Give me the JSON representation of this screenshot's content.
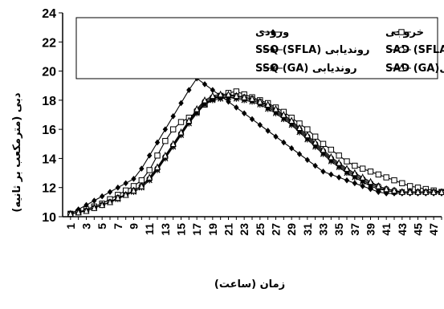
{
  "chart_data": {
    "type": "line",
    "xlabel": "زمان (ساعت)",
    "ylabel": "دبی (مترمکعب بر ثانیه)",
    "ylim": [
      10,
      24
    ],
    "yticks": [
      10,
      12,
      14,
      16,
      18,
      20,
      22,
      24
    ],
    "xlim": [
      0,
      48
    ],
    "xticks": [
      1,
      3,
      5,
      7,
      9,
      11,
      13,
      15,
      17,
      19,
      21,
      23,
      25,
      27,
      29,
      31,
      33,
      35,
      37,
      39,
      41,
      43,
      45,
      47
    ],
    "x": [
      1,
      2,
      3,
      4,
      5,
      6,
      7,
      8,
      9,
      10,
      11,
      12,
      13,
      14,
      15,
      16,
      17,
      18,
      19,
      20,
      21,
      22,
      23,
      24,
      25,
      26,
      27,
      28,
      29,
      30,
      31,
      32,
      33,
      34,
      35,
      36,
      37,
      38,
      39,
      40,
      41,
      42,
      43,
      44,
      45,
      46,
      47,
      48
    ],
    "series": [
      {
        "name": "ورودی",
        "marker": "diamond",
        "values": [
          10.2,
          10.5,
          10.8,
          11.1,
          11.4,
          11.7,
          12.0,
          12.3,
          12.6,
          13.3,
          14.2,
          15.1,
          16.0,
          16.9,
          17.8,
          18.7,
          19.5,
          19.1,
          18.7,
          18.3,
          17.9,
          17.5,
          17.1,
          16.7,
          16.3,
          15.9,
          15.5,
          15.1,
          14.7,
          14.3,
          13.9,
          13.5,
          13.1,
          12.9,
          12.7,
          12.5,
          12.3,
          12.1,
          11.9,
          11.7,
          11.6,
          11.6,
          11.6,
          11.6,
          11.6,
          11.6,
          11.6,
          11.6
        ]
      },
      {
        "name": "خروجی",
        "marker": "square",
        "values": [
          10.2,
          10.3,
          10.5,
          10.7,
          10.9,
          11.2,
          11.5,
          11.8,
          12.1,
          12.5,
          13.2,
          14.2,
          15.2,
          16.0,
          16.5,
          16.8,
          17.2,
          17.7,
          18.1,
          18.3,
          18.5,
          18.6,
          18.4,
          18.2,
          18.0,
          17.8,
          17.5,
          17.2,
          16.8,
          16.4,
          16.0,
          15.5,
          15.0,
          14.6,
          14.2,
          13.8,
          13.5,
          13.3,
          13.1,
          12.9,
          12.7,
          12.5,
          12.3,
          12.1,
          12.0,
          11.9,
          11.8,
          11.7
        ]
      },
      {
        "name": "روندیابی (SFLA) SSQ",
        "marker": "triangle-filled",
        "values": [
          10.2,
          10.3,
          10.4,
          10.6,
          10.8,
          11.0,
          11.3,
          11.5,
          11.8,
          12.1,
          12.6,
          13.3,
          14.1,
          14.9,
          15.7,
          16.5,
          17.2,
          17.8,
          18.1,
          18.2,
          18.2,
          18.2,
          18.1,
          18.0,
          17.8,
          17.5,
          17.2,
          16.8,
          16.4,
          15.9,
          15.4,
          14.9,
          14.4,
          13.9,
          13.5,
          13.1,
          12.8,
          12.5,
          12.2,
          12.0,
          11.8,
          11.7,
          11.7,
          11.7,
          11.7,
          11.7,
          11.7,
          11.7
        ]
      },
      {
        "name": "روندیابی (SFLA) SAD",
        "marker": "circle",
        "values": [
          10.2,
          10.3,
          10.4,
          10.6,
          10.8,
          11.0,
          11.3,
          11.5,
          11.8,
          12.1,
          12.6,
          13.3,
          14.1,
          14.9,
          15.7,
          16.5,
          17.3,
          17.9,
          18.2,
          18.3,
          18.3,
          18.3,
          18.2,
          18.1,
          17.9,
          17.6,
          17.3,
          16.9,
          16.5,
          16.0,
          15.5,
          15.0,
          14.5,
          14.0,
          13.6,
          13.2,
          12.9,
          12.6,
          12.3,
          12.1,
          11.9,
          11.8,
          11.7,
          11.7,
          11.7,
          11.7,
          11.7,
          11.7
        ]
      },
      {
        "name": "روندیابی (GA) SSQ",
        "marker": "star",
        "values": [
          10.2,
          10.3,
          10.4,
          10.6,
          10.8,
          11.0,
          11.2,
          11.5,
          11.7,
          12.0,
          12.5,
          13.2,
          14.0,
          14.8,
          15.6,
          16.4,
          17.1,
          17.7,
          18.0,
          18.1,
          18.2,
          18.1,
          18.0,
          17.9,
          17.7,
          17.4,
          17.1,
          16.7,
          16.3,
          15.8,
          15.3,
          14.8,
          14.3,
          13.8,
          13.4,
          13.0,
          12.7,
          12.4,
          12.1,
          11.9,
          11.8,
          11.7,
          11.7,
          11.7,
          11.7,
          11.7,
          11.7,
          11.7
        ]
      },
      {
        "name": "روندیابی (GA) SAD",
        "marker": "triangle-open",
        "values": [
          10.2,
          10.3,
          10.4,
          10.6,
          10.8,
          11.0,
          11.3,
          11.5,
          11.8,
          12.1,
          12.7,
          13.4,
          14.2,
          15.0,
          15.8,
          16.6,
          17.4,
          18.0,
          18.3,
          18.4,
          18.4,
          18.3,
          18.2,
          18.1,
          17.9,
          17.7,
          17.4,
          17.0,
          16.6,
          16.1,
          15.6,
          15.1,
          14.6,
          14.1,
          13.7,
          13.3,
          13.0,
          12.7,
          12.4,
          12.1,
          11.9,
          11.8,
          11.7,
          11.7,
          11.7,
          11.7,
          11.7,
          11.7
        ]
      }
    ],
    "legend": {
      "placement": "top",
      "entries": [
        {
          "label": "ورودی",
          "series_index": 0
        },
        {
          "label": "خروجی",
          "series_index": 1
        },
        {
          "label": "روندیابی SSQ (SFLA)",
          "series_index": 2
        },
        {
          "label": "روندیابی SAD (SFLA)",
          "series_index": 3
        },
        {
          "label": "روندیابی SSQ (GA)",
          "series_index": 4
        },
        {
          "label": "روندیابیSAD (GA)",
          "series_index": 5
        }
      ]
    },
    "grid": false,
    "line_color": "#000000"
  }
}
